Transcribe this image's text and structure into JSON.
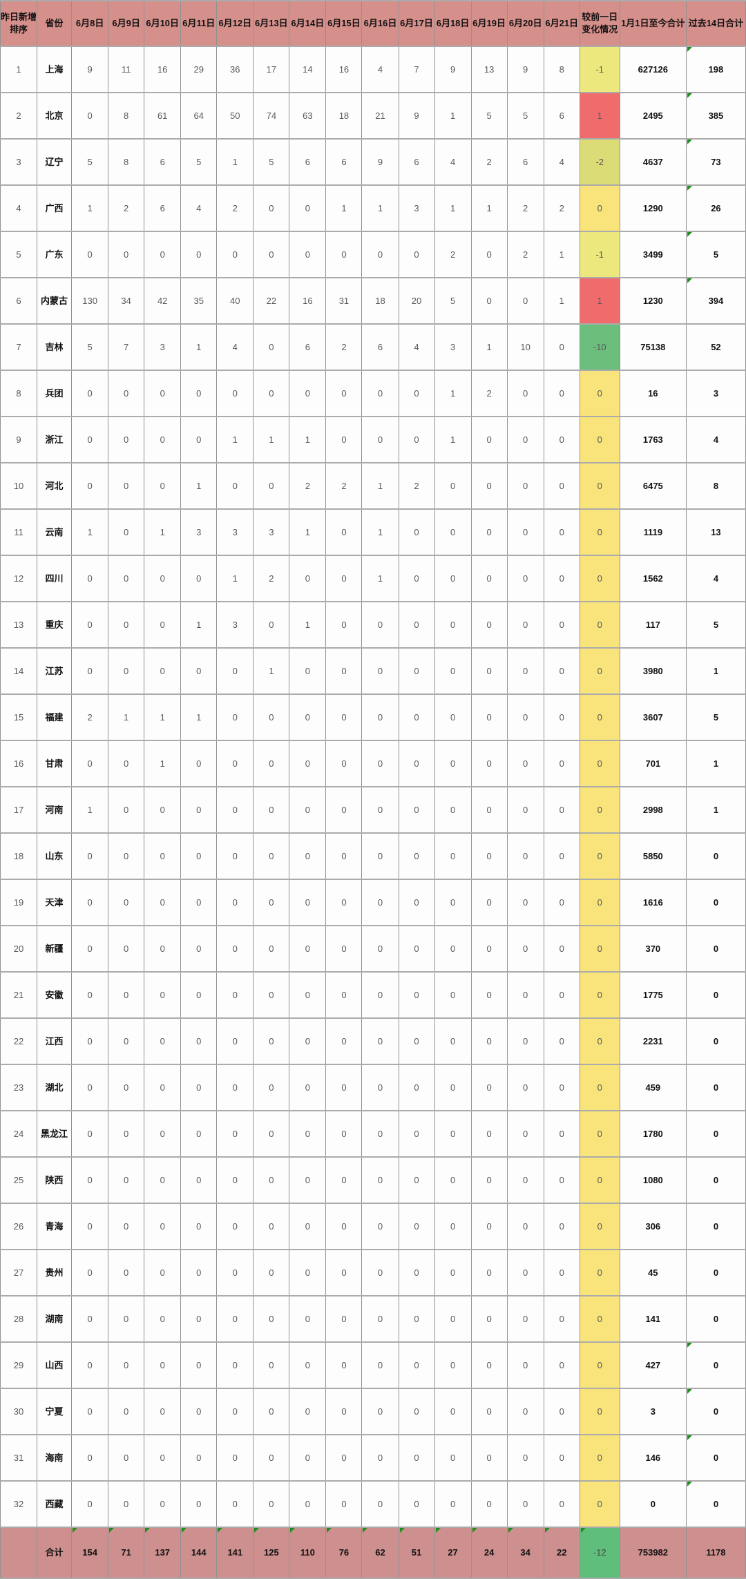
{
  "table": {
    "header": {
      "rank": "昨日新增排序",
      "province": "省份",
      "dates": [
        "6月8日",
        "6月9日",
        "6月10日",
        "6月11日",
        "6月12日",
        "6月13日",
        "6月14日",
        "6月15日",
        "6月16日",
        "6月17日",
        "6月18日",
        "6月19日",
        "6月20日",
        "6月21日"
      ],
      "change": "较前一日变化情况",
      "total_since": "1月1日至今合计",
      "last14": "过去14日合计"
    },
    "colors": {
      "header_bg": "#D6908C",
      "total_row_bg": "#CE8F8F",
      "change_positive": "#EF6B6C",
      "change_zero": "#F9E37B",
      "change_minus1": "#EDE87E",
      "change_minus2": "#DBDC75",
      "change_minus10": "#6BBE7C",
      "change_minus12": "#5FBE7C",
      "corner_triangle": "#1E8E1E",
      "grid_line": "#919191"
    },
    "rows": [
      {
        "rank": "1",
        "province": "上海",
        "daily": [
          "9",
          "11",
          "16",
          "29",
          "36",
          "17",
          "14",
          "16",
          "4",
          "7",
          "9",
          "13",
          "9",
          "8"
        ],
        "change": "-1",
        "change_color": "#EDE87E",
        "total_since": "627126",
        "last14": "198",
        "last14_corner": true
      },
      {
        "rank": "2",
        "province": "北京",
        "daily": [
          "0",
          "8",
          "61",
          "64",
          "50",
          "74",
          "63",
          "18",
          "21",
          "9",
          "1",
          "5",
          "5",
          "6"
        ],
        "change": "1",
        "change_color": "#EF6B6C",
        "total_since": "2495",
        "last14": "385",
        "last14_corner": true
      },
      {
        "rank": "3",
        "province": "辽宁",
        "daily": [
          "5",
          "8",
          "6",
          "5",
          "1",
          "5",
          "6",
          "6",
          "9",
          "6",
          "4",
          "2",
          "6",
          "4"
        ],
        "change": "-2",
        "change_color": "#DBDC75",
        "total_since": "4637",
        "last14": "73",
        "last14_corner": true
      },
      {
        "rank": "4",
        "province": "广西",
        "daily": [
          "1",
          "2",
          "6",
          "4",
          "2",
          "0",
          "0",
          "1",
          "1",
          "3",
          "1",
          "1",
          "2",
          "2"
        ],
        "change": "0",
        "change_color": "#F9E37B",
        "total_since": "1290",
        "last14": "26",
        "last14_corner": true
      },
      {
        "rank": "5",
        "province": "广东",
        "daily": [
          "0",
          "0",
          "0",
          "0",
          "0",
          "0",
          "0",
          "0",
          "0",
          "0",
          "2",
          "0",
          "2",
          "1"
        ],
        "change": "-1",
        "change_color": "#EDE87E",
        "total_since": "3499",
        "last14": "5",
        "last14_corner": true
      },
      {
        "rank": "6",
        "province": "内蒙古",
        "daily": [
          "130",
          "34",
          "42",
          "35",
          "40",
          "22",
          "16",
          "31",
          "18",
          "20",
          "5",
          "0",
          "0",
          "1"
        ],
        "change": "1",
        "change_color": "#EF6B6C",
        "total_since": "1230",
        "last14": "394",
        "last14_corner": true
      },
      {
        "rank": "7",
        "province": "吉林",
        "daily": [
          "5",
          "7",
          "3",
          "1",
          "4",
          "0",
          "6",
          "2",
          "6",
          "4",
          "3",
          "1",
          "10",
          "0"
        ],
        "change": "-10",
        "change_color": "#6BBE7C",
        "total_since": "75138",
        "last14": "52",
        "last14_corner": false
      },
      {
        "rank": "8",
        "province": "兵团",
        "daily": [
          "0",
          "0",
          "0",
          "0",
          "0",
          "0",
          "0",
          "0",
          "0",
          "0",
          "1",
          "2",
          "0",
          "0"
        ],
        "change": "0",
        "change_color": "#F9E37B",
        "total_since": "16",
        "last14": "3",
        "last14_corner": false
      },
      {
        "rank": "9",
        "province": "浙江",
        "daily": [
          "0",
          "0",
          "0",
          "0",
          "1",
          "1",
          "1",
          "0",
          "0",
          "0",
          "1",
          "0",
          "0",
          "0"
        ],
        "change": "0",
        "change_color": "#F9E37B",
        "total_since": "1763",
        "last14": "4",
        "last14_corner": false
      },
      {
        "rank": "10",
        "province": "河北",
        "daily": [
          "0",
          "0",
          "0",
          "1",
          "0",
          "0",
          "2",
          "2",
          "1",
          "2",
          "0",
          "0",
          "0",
          "0"
        ],
        "change": "0",
        "change_color": "#F9E37B",
        "total_since": "6475",
        "last14": "8",
        "last14_corner": false
      },
      {
        "rank": "11",
        "province": "云南",
        "daily": [
          "1",
          "0",
          "1",
          "3",
          "3",
          "3",
          "1",
          "0",
          "1",
          "0",
          "0",
          "0",
          "0",
          "0"
        ],
        "change": "0",
        "change_color": "#F9E37B",
        "total_since": "1119",
        "last14": "13",
        "last14_corner": false
      },
      {
        "rank": "12",
        "province": "四川",
        "daily": [
          "0",
          "0",
          "0",
          "0",
          "1",
          "2",
          "0",
          "0",
          "1",
          "0",
          "0",
          "0",
          "0",
          "0"
        ],
        "change": "0",
        "change_color": "#F9E37B",
        "total_since": "1562",
        "last14": "4",
        "last14_corner": false
      },
      {
        "rank": "13",
        "province": "重庆",
        "daily": [
          "0",
          "0",
          "0",
          "1",
          "3",
          "0",
          "1",
          "0",
          "0",
          "0",
          "0",
          "0",
          "0",
          "0"
        ],
        "change": "0",
        "change_color": "#F9E37B",
        "total_since": "117",
        "last14": "5",
        "last14_corner": false
      },
      {
        "rank": "14",
        "province": "江苏",
        "daily": [
          "0",
          "0",
          "0",
          "0",
          "0",
          "1",
          "0",
          "0",
          "0",
          "0",
          "0",
          "0",
          "0",
          "0"
        ],
        "change": "0",
        "change_color": "#F9E37B",
        "total_since": "3980",
        "last14": "1",
        "last14_corner": false
      },
      {
        "rank": "15",
        "province": "福建",
        "daily": [
          "2",
          "1",
          "1",
          "1",
          "0",
          "0",
          "0",
          "0",
          "0",
          "0",
          "0",
          "0",
          "0",
          "0"
        ],
        "change": "0",
        "change_color": "#F9E37B",
        "total_since": "3607",
        "last14": "5",
        "last14_corner": false
      },
      {
        "rank": "16",
        "province": "甘肃",
        "daily": [
          "0",
          "0",
          "1",
          "0",
          "0",
          "0",
          "0",
          "0",
          "0",
          "0",
          "0",
          "0",
          "0",
          "0"
        ],
        "change": "0",
        "change_color": "#F9E37B",
        "total_since": "701",
        "last14": "1",
        "last14_corner": false
      },
      {
        "rank": "17",
        "province": "河南",
        "daily": [
          "1",
          "0",
          "0",
          "0",
          "0",
          "0",
          "0",
          "0",
          "0",
          "0",
          "0",
          "0",
          "0",
          "0"
        ],
        "change": "0",
        "change_color": "#F9E37B",
        "total_since": "2998",
        "last14": "1",
        "last14_corner": false
      },
      {
        "rank": "18",
        "province": "山东",
        "daily": [
          "0",
          "0",
          "0",
          "0",
          "0",
          "0",
          "0",
          "0",
          "0",
          "0",
          "0",
          "0",
          "0",
          "0"
        ],
        "change": "0",
        "change_color": "#F9E37B",
        "total_since": "5850",
        "last14": "0",
        "last14_corner": false
      },
      {
        "rank": "19",
        "province": "天津",
        "daily": [
          "0",
          "0",
          "0",
          "0",
          "0",
          "0",
          "0",
          "0",
          "0",
          "0",
          "0",
          "0",
          "0",
          "0"
        ],
        "change": "0",
        "change_color": "#F9E37B",
        "total_since": "1616",
        "last14": "0",
        "last14_corner": false
      },
      {
        "rank": "20",
        "province": "新疆",
        "daily": [
          "0",
          "0",
          "0",
          "0",
          "0",
          "0",
          "0",
          "0",
          "0",
          "0",
          "0",
          "0",
          "0",
          "0"
        ],
        "change": "0",
        "change_color": "#F9E37B",
        "total_since": "370",
        "last14": "0",
        "last14_corner": false
      },
      {
        "rank": "21",
        "province": "安徽",
        "daily": [
          "0",
          "0",
          "0",
          "0",
          "0",
          "0",
          "0",
          "0",
          "0",
          "0",
          "0",
          "0",
          "0",
          "0"
        ],
        "change": "0",
        "change_color": "#F9E37B",
        "total_since": "1775",
        "last14": "0",
        "last14_corner": false
      },
      {
        "rank": "22",
        "province": "江西",
        "daily": [
          "0",
          "0",
          "0",
          "0",
          "0",
          "0",
          "0",
          "0",
          "0",
          "0",
          "0",
          "0",
          "0",
          "0"
        ],
        "change": "0",
        "change_color": "#F9E37B",
        "total_since": "2231",
        "last14": "0",
        "last14_corner": false
      },
      {
        "rank": "23",
        "province": "湖北",
        "daily": [
          "0",
          "0",
          "0",
          "0",
          "0",
          "0",
          "0",
          "0",
          "0",
          "0",
          "0",
          "0",
          "0",
          "0"
        ],
        "change": "0",
        "change_color": "#F9E37B",
        "total_since": "459",
        "last14": "0",
        "last14_corner": false
      },
      {
        "rank": "24",
        "province": "黑龙江",
        "daily": [
          "0",
          "0",
          "0",
          "0",
          "0",
          "0",
          "0",
          "0",
          "0",
          "0",
          "0",
          "0",
          "0",
          "0"
        ],
        "change": "0",
        "change_color": "#F9E37B",
        "total_since": "1780",
        "last14": "0",
        "last14_corner": false
      },
      {
        "rank": "25",
        "province": "陕西",
        "daily": [
          "0",
          "0",
          "0",
          "0",
          "0",
          "0",
          "0",
          "0",
          "0",
          "0",
          "0",
          "0",
          "0",
          "0"
        ],
        "change": "0",
        "change_color": "#F9E37B",
        "total_since": "1080",
        "last14": "0",
        "last14_corner": false
      },
      {
        "rank": "26",
        "province": "青海",
        "daily": [
          "0",
          "0",
          "0",
          "0",
          "0",
          "0",
          "0",
          "0",
          "0",
          "0",
          "0",
          "0",
          "0",
          "0"
        ],
        "change": "0",
        "change_color": "#F9E37B",
        "total_since": "306",
        "last14": "0",
        "last14_corner": false
      },
      {
        "rank": "27",
        "province": "贵州",
        "daily": [
          "0",
          "0",
          "0",
          "0",
          "0",
          "0",
          "0",
          "0",
          "0",
          "0",
          "0",
          "0",
          "0",
          "0"
        ],
        "change": "0",
        "change_color": "#F9E37B",
        "total_since": "45",
        "last14": "0",
        "last14_corner": false
      },
      {
        "rank": "28",
        "province": "湖南",
        "daily": [
          "0",
          "0",
          "0",
          "0",
          "0",
          "0",
          "0",
          "0",
          "0",
          "0",
          "0",
          "0",
          "0",
          "0"
        ],
        "change": "0",
        "change_color": "#F9E37B",
        "total_since": "141",
        "last14": "0",
        "last14_corner": false
      },
      {
        "rank": "29",
        "province": "山西",
        "daily": [
          "0",
          "0",
          "0",
          "0",
          "0",
          "0",
          "0",
          "0",
          "0",
          "0",
          "0",
          "0",
          "0",
          "0"
        ],
        "change": "0",
        "change_color": "#F9E37B",
        "total_since": "427",
        "last14": "0",
        "last14_corner": true
      },
      {
        "rank": "30",
        "province": "宁夏",
        "daily": [
          "0",
          "0",
          "0",
          "0",
          "0",
          "0",
          "0",
          "0",
          "0",
          "0",
          "0",
          "0",
          "0",
          "0"
        ],
        "change": "0",
        "change_color": "#F9E37B",
        "total_since": "3",
        "last14": "0",
        "last14_corner": true
      },
      {
        "rank": "31",
        "province": "海南",
        "daily": [
          "0",
          "0",
          "0",
          "0",
          "0",
          "0",
          "0",
          "0",
          "0",
          "0",
          "0",
          "0",
          "0",
          "0"
        ],
        "change": "0",
        "change_color": "#F9E37B",
        "total_since": "146",
        "last14": "0",
        "last14_corner": true
      },
      {
        "rank": "32",
        "province": "西藏",
        "daily": [
          "0",
          "0",
          "0",
          "0",
          "0",
          "0",
          "0",
          "0",
          "0",
          "0",
          "0",
          "0",
          "0",
          "0"
        ],
        "change": "0",
        "change_color": "#F9E37B",
        "total_since": "0",
        "last14": "0",
        "last14_corner": true
      }
    ],
    "total": {
      "label": "合计",
      "daily": [
        "154",
        "71",
        "137",
        "144",
        "141",
        "125",
        "110",
        "76",
        "62",
        "51",
        "27",
        "24",
        "34",
        "22"
      ],
      "change": "-12",
      "change_color": "#5FBE7C",
      "total_since": "753982",
      "last14": "1178"
    }
  }
}
